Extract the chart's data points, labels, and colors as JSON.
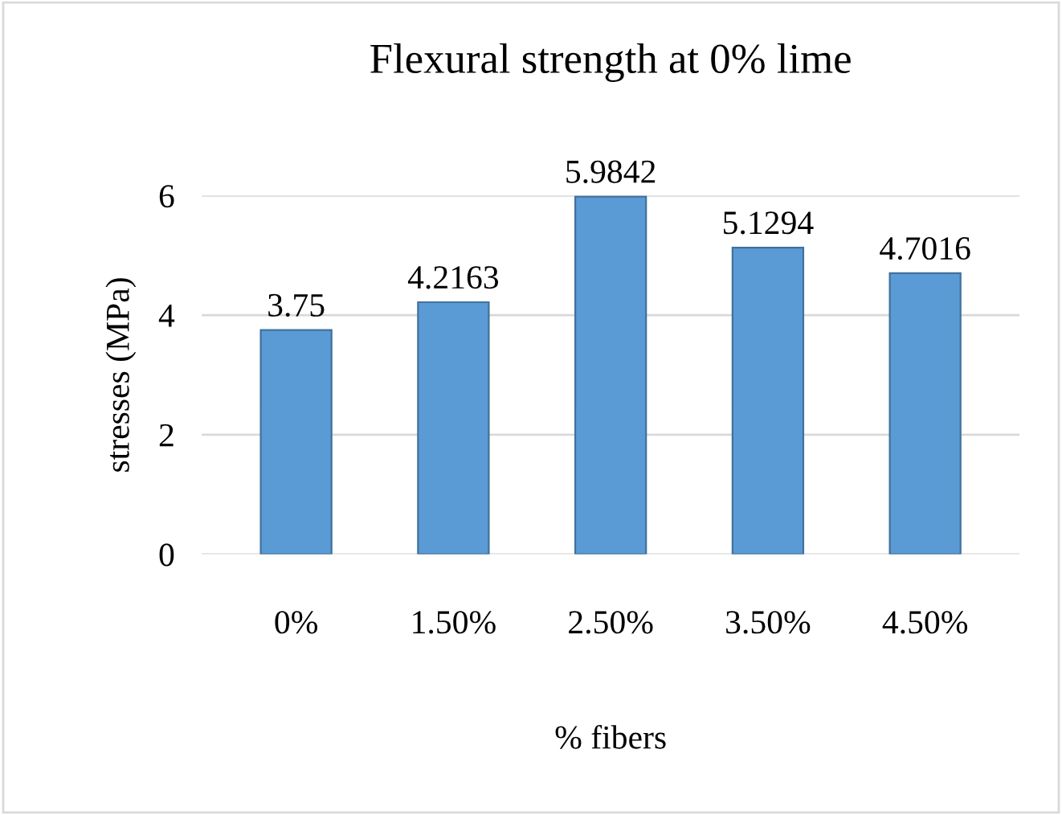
{
  "chart_data": {
    "type": "bar",
    "title": "Flexural strength at 0% lime",
    "xlabel": "% fibers",
    "ylabel": "stresses (MPa)",
    "categories": [
      "0%",
      "1.50%",
      "2.50%",
      "3.50%",
      "4.50%"
    ],
    "values": [
      3.75,
      4.2163,
      5.9842,
      5.1294,
      4.7016
    ],
    "color": "#5b9bd5",
    "ylim": [
      0,
      6
    ],
    "yticks": [
      0,
      2,
      4,
      6
    ],
    "grid": "y",
    "data_labels": true
  }
}
